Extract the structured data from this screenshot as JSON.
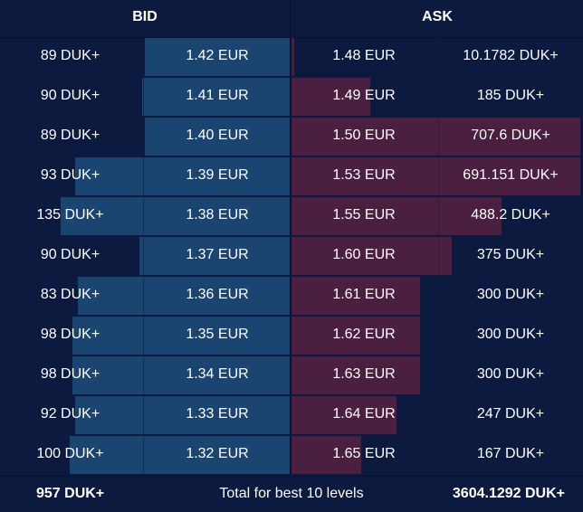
{
  "header": {
    "bid_title": "BID",
    "ask_title": "ASK"
  },
  "colors": {
    "background": "#0d1a3f",
    "bid_bar": "#1b4571",
    "ask_bar": "#4a1f40",
    "text": "#ffffff"
  },
  "levels": [
    {
      "bid_qty": "89 DUK+",
      "bid_price": "1.42 EUR",
      "ask_price": "1.48 EUR",
      "ask_qty": "10.1782 DUK+"
    },
    {
      "bid_qty": "90 DUK+",
      "bid_price": "1.41 EUR",
      "ask_price": "1.49 EUR",
      "ask_qty": "185 DUK+"
    },
    {
      "bid_qty": "89 DUK+",
      "bid_price": "1.40 EUR",
      "ask_price": "1.50 EUR",
      "ask_qty": "707.6 DUK+"
    },
    {
      "bid_qty": "93 DUK+",
      "bid_price": "1.39 EUR",
      "ask_price": "1.53 EUR",
      "ask_qty": "691.151 DUK+"
    },
    {
      "bid_qty": "135 DUK+",
      "bid_price": "1.38 EUR",
      "ask_price": "1.55 EUR",
      "ask_qty": "488.2 DUK+"
    },
    {
      "bid_qty": "90 DUK+",
      "bid_price": "1.37 EUR",
      "ask_price": "1.60 EUR",
      "ask_qty": "375 DUK+"
    },
    {
      "bid_qty": "83 DUK+",
      "bid_price": "1.36 EUR",
      "ask_price": "1.61 EUR",
      "ask_qty": "300 DUK+"
    },
    {
      "bid_qty": "98 DUK+",
      "bid_price": "1.35 EUR",
      "ask_price": "1.62 EUR",
      "ask_qty": "300 DUK+"
    },
    {
      "bid_qty": "98 DUK+",
      "bid_price": "1.34 EUR",
      "ask_price": "1.63 EUR",
      "ask_qty": "300 DUK+"
    },
    {
      "bid_qty": "92 DUK+",
      "bid_price": "1.33 EUR",
      "ask_price": "1.64 EUR",
      "ask_qty": "247 DUK+"
    },
    {
      "bid_qty": "100 DUK+",
      "bid_price": "1.32 EUR",
      "ask_price": "1.65 EUR",
      "ask_qty": "167 DUK+"
    }
  ],
  "depth": {
    "bid_fill": [
      0.5,
      0.51,
      0.5,
      0.74,
      0.79,
      0.52,
      0.73,
      0.75,
      0.75,
      0.74,
      0.76
    ],
    "ask_fill": [
      0.01,
      0.27,
      0.99,
      0.99,
      0.72,
      0.55,
      0.44,
      0.44,
      0.44,
      0.36,
      0.24
    ]
  },
  "footer": {
    "bid_total": "957 DUK+",
    "label": "Total for best 10 levels",
    "ask_total": "3604.1292 DUK+"
  }
}
